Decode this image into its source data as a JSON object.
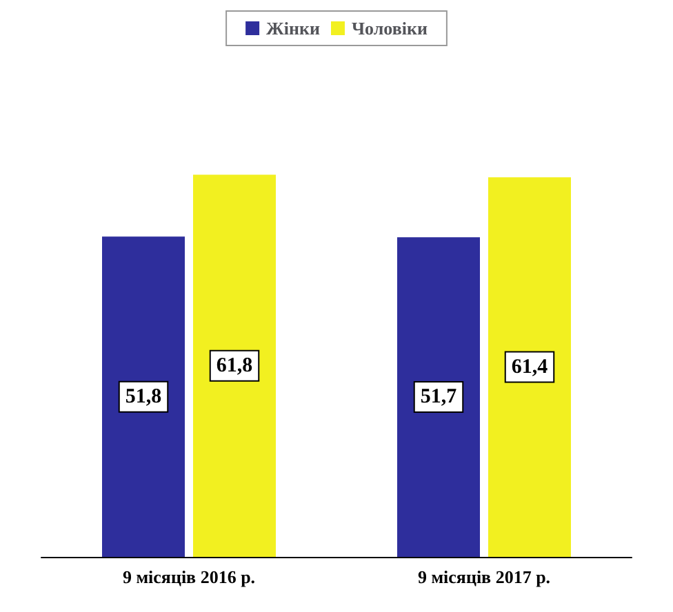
{
  "chart_data": {
    "type": "bar",
    "categories": [
      "9 місяців 2016 р.",
      "9 місяців 2017 р."
    ],
    "series": [
      {
        "name": "Жінки",
        "color": "#2e2e9c",
        "values": [
          51.8,
          51.7
        ],
        "value_labels": [
          "51,8",
          "51,7"
        ]
      },
      {
        "name": "Чоловіки",
        "color": "#f2f020",
        "values": [
          61.8,
          61.4
        ],
        "value_labels": [
          "61,8",
          "61,4"
        ]
      }
    ],
    "legend": "top"
  }
}
